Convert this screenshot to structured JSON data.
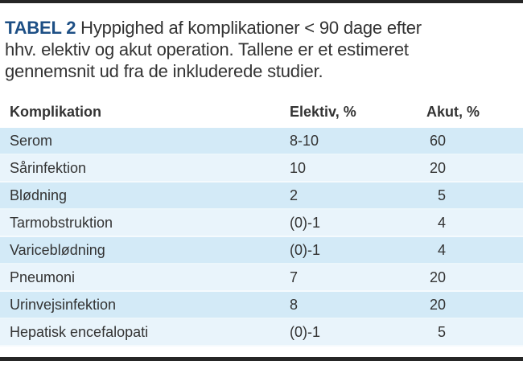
{
  "title": {
    "tag": "TABEL 2",
    "line1_rest": "Hyppighed af komplikationer < 90 dage efter",
    "line2": "hhv. elektiv og akut operation. Tallene er et estimeret",
    "line3": "gennemsnit ud fra de inkluderede studier."
  },
  "table": {
    "columns": [
      "Komplikation",
      "Elektiv, %",
      "Akut, %"
    ],
    "rows": [
      {
        "komplikation": "Serom",
        "elektiv": "8-10",
        "akut": "60"
      },
      {
        "komplikation": "Sårinfektion",
        "elektiv": "10",
        "akut": "20"
      },
      {
        "komplikation": "Blødning",
        "elektiv": "2",
        "akut": "5"
      },
      {
        "komplikation": "Tarmobstruktion",
        "elektiv": "(0)-1",
        "akut": "4"
      },
      {
        "komplikation": "Variceblødning",
        "elektiv": "(0)-1",
        "akut": "4"
      },
      {
        "komplikation": "Pneumoni",
        "elektiv": "7",
        "akut": "20"
      },
      {
        "komplikation": "Urinvejsinfektion",
        "elektiv": "8",
        "akut": "20"
      },
      {
        "komplikation": "Hepatisk encefalopati",
        "elektiv": "(0)-1",
        "akut": "5"
      }
    ]
  },
  "colors": {
    "accent_blue": "#1d4f85",
    "row_blue_dark": "#d3eaf7",
    "row_blue_light": "#e9f4fb",
    "rule_dark": "#262626",
    "text_dark": "#333333"
  }
}
